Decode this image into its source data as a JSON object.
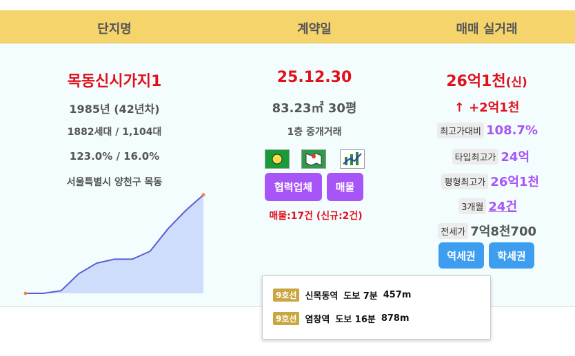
{
  "header": {
    "columns": [
      "단지명",
      "계약일",
      "매매 실거래"
    ]
  },
  "complex": {
    "name": "목동신시가지1",
    "built": "1985년 (42년차)",
    "households": "1882세대 / 1,104대",
    "ratio": "123.0% / 16.0%",
    "address": "서울특별시 양천구 목동",
    "trend": {
      "type": "line",
      "values": [
        0,
        0,
        2,
        15,
        23,
        26,
        26,
        32,
        49,
        63,
        75
      ],
      "color": "#5b5bd6",
      "fill": "#cdddfb",
      "end_color": "#f0883e"
    }
  },
  "contract": {
    "date": "25.12.30",
    "area": "83.23㎡ 30평",
    "floor": "1층 중개거래",
    "buttons": [
      "협력업체",
      "매물"
    ],
    "listings": "매물:17건 (신규:2건)"
  },
  "price": {
    "amount": "26억1천",
    "tag": "(신)",
    "change": "↑ +2억1천",
    "rows": [
      {
        "label": "최고가대비",
        "value": "108.7%"
      },
      {
        "label": "타입최고가",
        "value": "24억"
      },
      {
        "label": "평형최고가",
        "value": "26억1천"
      },
      {
        "label": "3개월",
        "value": "24건"
      },
      {
        "label": "전세가",
        "value": "7억8천700"
      }
    ],
    "buttons": [
      "역세권",
      "학세권"
    ]
  },
  "tooltip": {
    "stations": [
      {
        "line": "9호선",
        "name": "신목동역",
        "walk": "도보 7분",
        "distance": "457m"
      },
      {
        "line": "9호선",
        "name": "염창역",
        "walk": "도보 16분",
        "distance": "878m"
      }
    ]
  }
}
